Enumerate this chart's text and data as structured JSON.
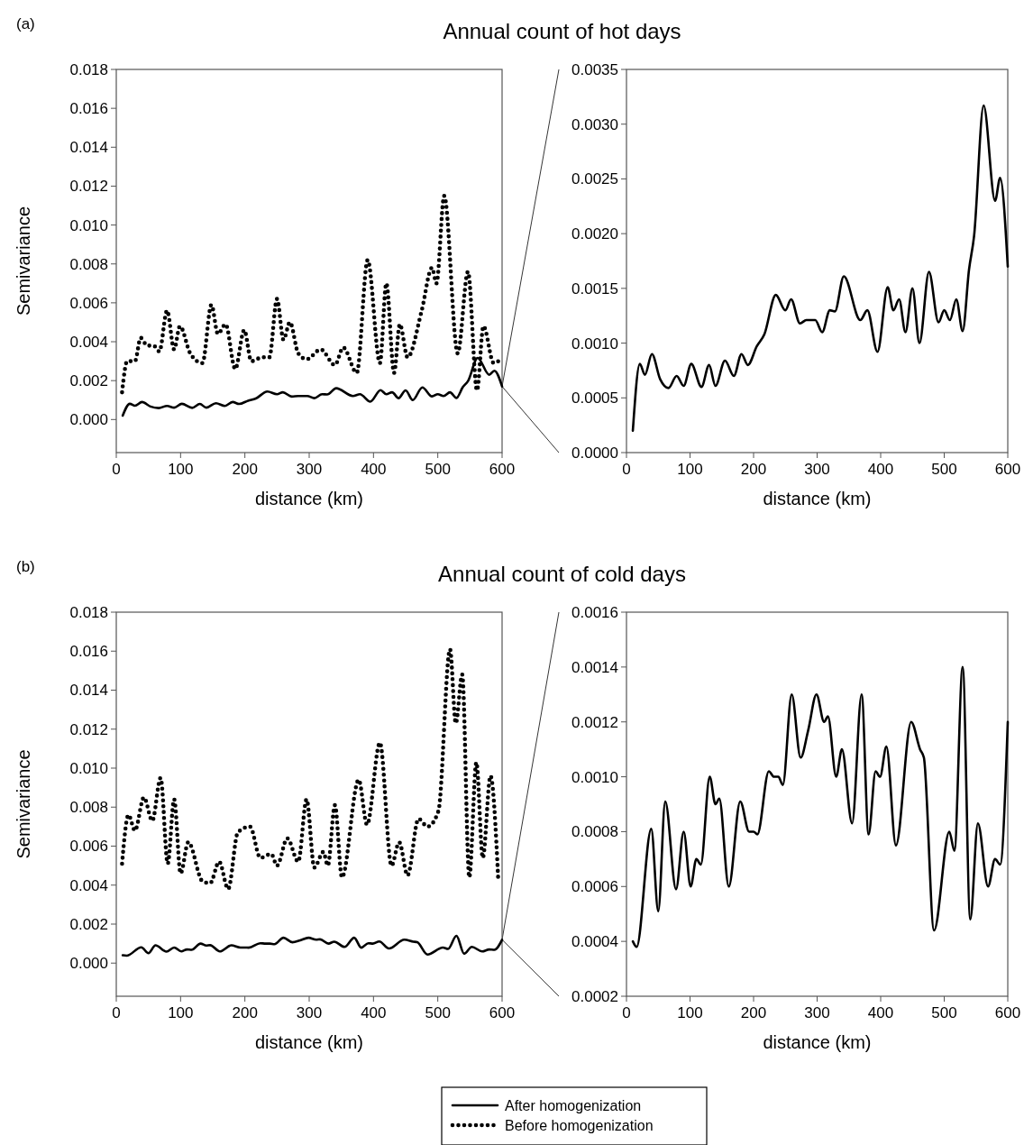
{
  "chart_data": [
    {
      "type": "line",
      "title": "Annual count of hot days",
      "annotations": [
        "(a)"
      ],
      "xlabel": "distance (km)",
      "ylabel": "Semivariance",
      "xlim": [
        0,
        600
      ],
      "xticks": [
        0,
        100,
        200,
        300,
        400,
        500,
        600
      ],
      "ylim": [
        -0.0017,
        0.018
      ],
      "yticks": [
        {
          "value": 0,
          "label": "0.000"
        },
        {
          "value": 0.002,
          "label": "0.002"
        },
        {
          "value": 0.004,
          "label": "0.004"
        },
        {
          "value": 0.006,
          "label": "0.006"
        },
        {
          "value": 0.008,
          "label": "0.008"
        },
        {
          "value": 0.01,
          "label": "0.010"
        },
        {
          "value": 0.012,
          "label": "0.012"
        },
        {
          "value": 0.014,
          "label": "0.014"
        },
        {
          "value": 0.016,
          "label": "0.016"
        },
        {
          "value": 0.018,
          "label": "0.018"
        }
      ],
      "series": [
        {
          "color": "#000000",
          "line_style": "solid",
          "x": [
            10,
            21,
            29,
            40,
            53,
            66,
            79,
            90,
            102,
            118,
            130,
            140,
            155,
            169,
            181,
            191,
            205,
            217,
            235,
            250,
            259,
            273,
            283,
            297,
            308,
            320,
            328,
            342,
            368,
            379,
            395,
            411,
            420,
            429,
            439,
            450,
            461,
            476,
            491,
            500,
            509,
            519,
            529,
            539,
            547,
            562,
            580,
            588,
            600
          ],
          "values": [
            0.0002,
            0.00081,
            0.00071,
            0.0009,
            0.00067,
            0.00059,
            0.0007,
            0.00061,
            0.00081,
            0.0006,
            0.0008,
            0.00061,
            0.00084,
            0.0007,
            0.0009,
            0.0008,
            0.00097,
            0.00108,
            0.00144,
            0.0013,
            0.0014,
            0.00118,
            0.00121,
            0.00121,
            0.0011,
            0.0013,
            0.00129,
            0.00161,
            0.00121,
            0.0013,
            0.00092,
            0.00151,
            0.0013,
            0.0014,
            0.0011,
            0.0015,
            0.001,
            0.00165,
            0.00119,
            0.0013,
            0.00121,
            0.0014,
            0.00111,
            0.00167,
            0.00198,
            0.00317,
            0.0023,
            0.00251,
            0.0017
          ]
        },
        {
          "color": "#000000",
          "line_style": "dotted",
          "x": [
            9,
            17,
            29,
            38,
            48,
            58,
            67,
            79,
            90,
            99,
            115,
            134,
            148,
            158,
            170,
            185,
            199,
            210,
            227,
            238,
            250,
            260,
            270,
            283,
            296,
            318,
            340,
            353,
            374,
            391,
            410,
            420,
            432,
            441,
            453,
            475,
            491,
            498,
            510,
            531,
            547,
            561,
            571,
            587,
            598
          ],
          "values": [
            0.0014,
            0.003,
            0.003,
            0.0042,
            0.0038,
            0.0038,
            0.0035,
            0.0056,
            0.0036,
            0.0048,
            0.0034,
            0.0029,
            0.0059,
            0.0044,
            0.0049,
            0.0026,
            0.0046,
            0.003,
            0.0032,
            0.0032,
            0.0062,
            0.0041,
            0.005,
            0.0034,
            0.0031,
            0.0036,
            0.0028,
            0.0037,
            0.0024,
            0.0082,
            0.0029,
            0.007,
            0.0024,
            0.0049,
            0.0032,
            0.0056,
            0.0078,
            0.007,
            0.0115,
            0.0034,
            0.0076,
            0.0015,
            0.0048,
            0.0029,
            0.0031
          ]
        }
      ]
    },
    {
      "type": "line",
      "xlabel": "distance (km)",
      "xlim": [
        0,
        600
      ],
      "xticks": [
        0,
        100,
        200,
        300,
        400,
        500,
        600
      ],
      "ylim": [
        0,
        0.0035
      ],
      "yticks": [
        {
          "value": 0,
          "label": "0.0000"
        },
        {
          "value": 0.0005,
          "label": "0.0005"
        },
        {
          "value": 0.001,
          "label": "0.0010"
        },
        {
          "value": 0.0015,
          "label": "0.0015"
        },
        {
          "value": 0.002,
          "label": "0.0020"
        },
        {
          "value": 0.0025,
          "label": "0.0025"
        },
        {
          "value": 0.003,
          "label": "0.0030"
        },
        {
          "value": 0.0035,
          "label": "0.0035"
        }
      ],
      "series": [
        {
          "color": "#000000",
          "line_style": "solid",
          "x": [
            10,
            21,
            29,
            40,
            53,
            66,
            79,
            90,
            102,
            118,
            130,
            140,
            155,
            169,
            181,
            191,
            205,
            217,
            235,
            250,
            259,
            273,
            283,
            297,
            308,
            320,
            328,
            342,
            368,
            379,
            395,
            411,
            420,
            429,
            439,
            450,
            461,
            476,
            491,
            500,
            509,
            519,
            529,
            539,
            547,
            562,
            580,
            588,
            600
          ],
          "values": [
            0.0002,
            0.00081,
            0.00071,
            0.0009,
            0.00067,
            0.00059,
            0.0007,
            0.00061,
            0.00081,
            0.0006,
            0.0008,
            0.00061,
            0.00084,
            0.0007,
            0.0009,
            0.0008,
            0.00097,
            0.00108,
            0.00144,
            0.0013,
            0.0014,
            0.00118,
            0.00121,
            0.00121,
            0.0011,
            0.0013,
            0.00129,
            0.00161,
            0.00121,
            0.0013,
            0.00092,
            0.00151,
            0.0013,
            0.0014,
            0.0011,
            0.0015,
            0.001,
            0.00165,
            0.00119,
            0.0013,
            0.00121,
            0.0014,
            0.00111,
            0.00167,
            0.00198,
            0.00317,
            0.0023,
            0.00251,
            0.0017
          ]
        }
      ]
    },
    {
      "type": "line",
      "title": "Annual count of cold days",
      "annotations": [
        "(b)"
      ],
      "xlabel": "distance (km)",
      "ylabel": "Semivariance",
      "legend": "bottom",
      "xlim": [
        0,
        600
      ],
      "xticks": [
        0,
        100,
        200,
        300,
        400,
        500,
        600
      ],
      "ylim": [
        -0.0017,
        0.018
      ],
      "yticks": [
        {
          "value": 0,
          "label": "0.000"
        },
        {
          "value": 0.002,
          "label": "0.002"
        },
        {
          "value": 0.004,
          "label": "0.004"
        },
        {
          "value": 0.006,
          "label": "0.006"
        },
        {
          "value": 0.008,
          "label": "0.008"
        },
        {
          "value": 0.01,
          "label": "0.010"
        },
        {
          "value": 0.012,
          "label": "0.012"
        },
        {
          "value": 0.014,
          "label": "0.014"
        },
        {
          "value": 0.016,
          "label": "0.016"
        },
        {
          "value": 0.018,
          "label": "0.018"
        }
      ],
      "series": [
        {
          "name": "After homogenization",
          "color": "#000000",
          "line_style": "solid",
          "x": [
            10,
            16,
            39,
            50,
            61,
            78,
            90,
            101,
            110,
            117,
            131,
            140,
            146,
            161,
            179,
            193,
            200,
            206,
            224,
            232,
            239,
            246,
            260,
            274,
            286,
            299,
            311,
            317,
            330,
            339,
            355,
            370,
            381,
            392,
            399,
            409,
            424,
            448,
            462,
            468,
            484,
            508,
            516,
            529,
            541,
            553,
            569,
            580,
            588,
            600
          ],
          "values": [
            0.0004,
            0.00038,
            0.00081,
            0.00051,
            0.00091,
            0.00059,
            0.0008,
            0.0006,
            0.0007,
            0.00068,
            0.001,
            0.0009,
            0.00092,
            0.0006,
            0.00091,
            0.0008,
            0.0008,
            0.00079,
            0.00102,
            0.001,
            0.001,
            0.00097,
            0.0013,
            0.00107,
            0.00117,
            0.0013,
            0.0012,
            0.00122,
            0.001,
            0.0011,
            0.00083,
            0.0013,
            0.00079,
            0.00102,
            0.001,
            0.00111,
            0.00075,
            0.0012,
            0.0011,
            0.00107,
            0.00044,
            0.0008,
            0.00073,
            0.0014,
            0.00048,
            0.00083,
            0.0006,
            0.0007,
            0.00068,
            0.0012
          ]
        },
        {
          "name": "Before homogenization",
          "color": "#000000",
          "line_style": "dotted",
          "x": [
            9,
            19,
            29,
            43,
            56,
            69,
            80,
            90,
            100,
            112,
            134,
            146,
            160,
            174,
            189,
            208,
            224,
            241,
            250,
            266,
            283,
            296,
            308,
            322,
            329,
            340,
            351,
            377,
            390,
            410,
            428,
            440,
            453,
            470,
            484,
            501,
            519,
            528,
            538,
            549,
            560,
            570,
            582,
            594
          ],
          "values": [
            0.0051,
            0.0076,
            0.0068,
            0.0085,
            0.0073,
            0.0095,
            0.0051,
            0.0084,
            0.0046,
            0.0062,
            0.0042,
            0.0041,
            0.0052,
            0.0038,
            0.0067,
            0.007,
            0.0054,
            0.0056,
            0.005,
            0.0064,
            0.0052,
            0.0084,
            0.0049,
            0.0057,
            0.005,
            0.0081,
            0.0044,
            0.0094,
            0.0071,
            0.0113,
            0.005,
            0.0062,
            0.0045,
            0.0074,
            0.007,
            0.0078,
            0.0161,
            0.0123,
            0.0148,
            0.0044,
            0.0103,
            0.0054,
            0.0096,
            0.0043
          ]
        }
      ]
    },
    {
      "type": "line",
      "xlabel": "distance (km)",
      "xlim": [
        0,
        600
      ],
      "xticks": [
        0,
        100,
        200,
        300,
        400,
        500,
        600
      ],
      "ylim": [
        0.0002,
        0.0016
      ],
      "yticks": [
        {
          "value": 0.0002,
          "label": "0.0002"
        },
        {
          "value": 0.0004,
          "label": "0.0004"
        },
        {
          "value": 0.0006,
          "label": "0.0006"
        },
        {
          "value": 0.0008,
          "label": "0.0008"
        },
        {
          "value": 0.001,
          "label": "0.0010"
        },
        {
          "value": 0.0012,
          "label": "0.0012"
        },
        {
          "value": 0.0014,
          "label": "0.0014"
        },
        {
          "value": 0.0016,
          "label": "0.0016"
        }
      ],
      "series": [
        {
          "color": "#000000",
          "line_style": "solid",
          "x": [
            10,
            16,
            39,
            50,
            61,
            78,
            90,
            101,
            110,
            117,
            131,
            140,
            146,
            161,
            179,
            193,
            200,
            206,
            224,
            232,
            239,
            246,
            260,
            274,
            286,
            299,
            311,
            317,
            330,
            339,
            355,
            370,
            381,
            392,
            399,
            409,
            424,
            448,
            462,
            468,
            484,
            508,
            516,
            529,
            541,
            553,
            569,
            580,
            588,
            600
          ],
          "values": [
            0.0004,
            0.00038,
            0.00081,
            0.00051,
            0.00091,
            0.00059,
            0.0008,
            0.0006,
            0.0007,
            0.00068,
            0.001,
            0.0009,
            0.00092,
            0.0006,
            0.00091,
            0.0008,
            0.0008,
            0.00079,
            0.00102,
            0.001,
            0.001,
            0.00097,
            0.0013,
            0.00107,
            0.00117,
            0.0013,
            0.0012,
            0.00122,
            0.001,
            0.0011,
            0.00083,
            0.0013,
            0.00079,
            0.00102,
            0.001,
            0.00111,
            0.00075,
            0.0012,
            0.0011,
            0.00107,
            0.00044,
            0.0008,
            0.00073,
            0.0014,
            0.00048,
            0.00083,
            0.0006,
            0.0007,
            0.00068,
            0.0012
          ]
        }
      ]
    }
  ]
}
